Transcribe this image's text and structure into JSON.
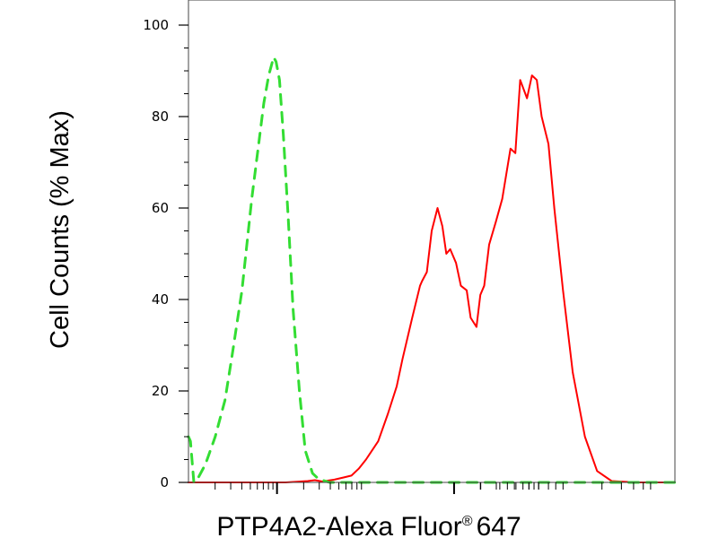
{
  "chart_data": {
    "type": "line",
    "title": "",
    "xlabel": "PTP4A2-Alexa Fluor",
    "xlabel_mark": "®",
    "xlabel_suffix": "647",
    "ylabel": "Cell Counts (% Max)",
    "ylim": [
      0,
      100
    ],
    "x_scale": "log",
    "x_tick_labels": [],
    "y_ticks": [
      0,
      20,
      40,
      60,
      80,
      100
    ],
    "y_tick_labels": [
      "0",
      "20",
      "40",
      "60",
      "80",
      "100"
    ],
    "grid": false,
    "legend": "none",
    "series": [
      {
        "color": "#ff0000",
        "style": "solid",
        "x": [
          0.0,
          0.12,
          0.2,
          0.245,
          0.26,
          0.275,
          0.3,
          0.335,
          0.35,
          0.365,
          0.39,
          0.41,
          0.428,
          0.44,
          0.46,
          0.476,
          0.48,
          0.49,
          0.5,
          0.512,
          0.522,
          0.53,
          0.538,
          0.55,
          0.56,
          0.572,
          0.58,
          0.592,
          0.6,
          0.608,
          0.618,
          0.632,
          0.645,
          0.662,
          0.672,
          0.682,
          0.696,
          0.706,
          0.716,
          0.726,
          0.74,
          0.752,
          0.77,
          0.79,
          0.815,
          0.84,
          0.87,
          0.92,
          1.0
        ],
        "y": [
          0,
          0,
          0,
          0.3,
          0.5,
          0.2,
          0.6,
          1.5,
          3,
          5,
          9,
          15,
          21,
          27,
          36,
          43,
          44,
          46,
          55,
          60,
          56,
          50,
          51,
          48,
          43,
          42,
          36,
          34,
          41,
          43,
          52,
          57,
          62,
          73,
          72,
          88,
          84,
          89,
          88,
          80,
          74,
          60,
          42,
          24,
          10,
          2.5,
          0.3,
          0,
          0
        ]
      },
      {
        "color": "#33dd33",
        "style": "dashed",
        "x": [
          0.0,
          0.004,
          0.011,
          0.02,
          0.035,
          0.055,
          0.075,
          0.09,
          0.11,
          0.13,
          0.155,
          0.165,
          0.175,
          0.18,
          0.187,
          0.195,
          0.205,
          0.215,
          0.228,
          0.24,
          0.255,
          0.265,
          0.275,
          0.29,
          0.32,
          0.4,
          0.6,
          1.0
        ],
        "y": [
          10,
          9,
          0,
          1,
          4,
          10,
          18,
          28,
          42,
          62,
          83,
          89,
          93,
          92,
          88,
          76,
          58,
          38,
          20,
          7,
          2,
          1,
          0.5,
          0,
          0,
          0,
          0,
          0
        ]
      }
    ]
  }
}
